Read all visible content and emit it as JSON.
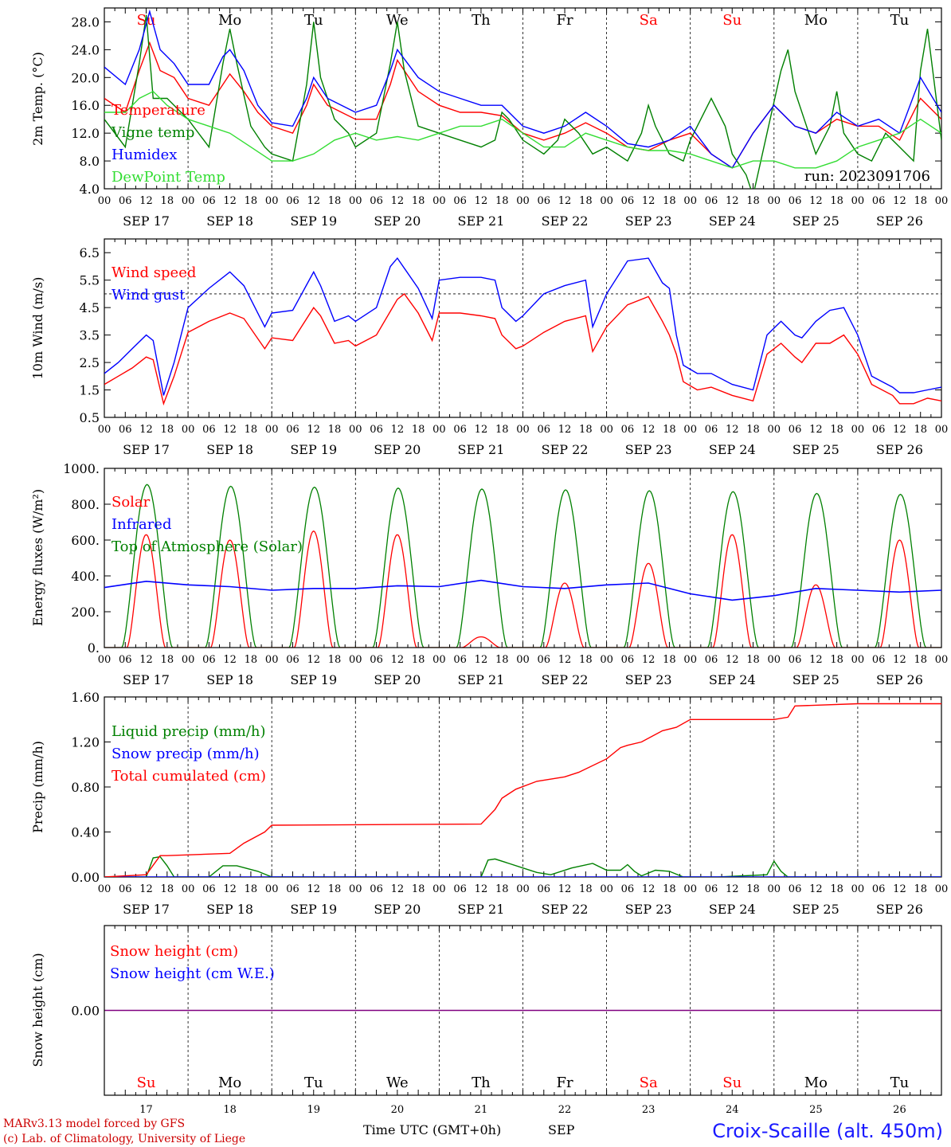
{
  "colors": {
    "red": "#ff0000",
    "green": "#008000",
    "blue": "#0000ff",
    "lightgreen": "#33dd33",
    "purple": "#800080"
  },
  "days": [
    {
      "label": "Su",
      "weekend": true,
      "date": "SEP 17",
      "num": "17"
    },
    {
      "label": "Mo",
      "weekend": false,
      "date": "SEP 18",
      "num": "18"
    },
    {
      "label": "Tu",
      "weekend": false,
      "date": "SEP 19",
      "num": "19"
    },
    {
      "label": "We",
      "weekend": false,
      "date": "SEP 20",
      "num": "20"
    },
    {
      "label": "Th",
      "weekend": false,
      "date": "SEP 21",
      "num": "21"
    },
    {
      "label": "Fr",
      "weekend": false,
      "date": "SEP 22",
      "num": "22"
    },
    {
      "label": "Sa",
      "weekend": true,
      "date": "SEP 23",
      "num": "23"
    },
    {
      "label": "Su",
      "weekend": true,
      "date": "SEP 24",
      "num": "24"
    },
    {
      "label": "Mo",
      "weekend": false,
      "date": "SEP 25",
      "num": "25"
    },
    {
      "label": "Tu",
      "weekend": false,
      "date": "SEP 26",
      "num": "26"
    }
  ],
  "hour_labels": [
    "00",
    "06",
    "12",
    "18"
  ],
  "run_label": "run: 2023091706",
  "footer": {
    "model": "MARv3.13 model forced by GFS",
    "copyright": "(c) Lab. of Climatology, University of Liege",
    "axis_title": "Time UTC (GMT+0h)",
    "month": "SEP",
    "station": "Croix-Scaille (alt. 450m)"
  },
  "chart_data": [
    {
      "type": "line",
      "ylabel": "2m Temp. (°C)",
      "ylim": [
        4,
        30
      ],
      "yticks": [
        "4.0",
        "8.0",
        "12.0",
        "16.0",
        "20.0",
        "24.0",
        "28.0"
      ],
      "x_unit": "hours since Sep 17 00 UTC",
      "series": [
        {
          "name": "Temperature",
          "color": "#ff0000",
          "x": [
            0,
            6,
            10,
            13,
            16,
            20,
            24,
            30,
            34,
            36,
            40,
            44,
            48,
            54,
            58,
            60,
            64,
            68,
            72,
            78,
            82,
            84,
            90,
            96,
            102,
            108,
            114,
            120,
            126,
            132,
            138,
            144,
            150,
            156,
            162,
            168,
            174,
            180,
            186,
            192,
            198,
            204,
            210,
            216,
            222,
            228,
            234,
            240
          ],
          "values": [
            17,
            15,
            21,
            25,
            21,
            20,
            17,
            16,
            19,
            20.5,
            18,
            15,
            13,
            12,
            16,
            19,
            16,
            15,
            14,
            14,
            19,
            22.5,
            18,
            16,
            15,
            15,
            14.5,
            12,
            11,
            12,
            13.5,
            12,
            10,
            9.5,
            11,
            12,
            9,
            7,
            12,
            16,
            13,
            12,
            14,
            13,
            13,
            11,
            17,
            14
          ]
        },
        {
          "name": "Vigne temp",
          "color": "#008000",
          "x": [
            0,
            6,
            10,
            12,
            14,
            18,
            22,
            24,
            30,
            34,
            36,
            38,
            42,
            46,
            48,
            54,
            58,
            60,
            62,
            66,
            70,
            72,
            78,
            82,
            84,
            86,
            90,
            96,
            102,
            108,
            112,
            114,
            116,
            120,
            126,
            130,
            132,
            136,
            140,
            144,
            150,
            154,
            156,
            158,
            162,
            166,
            168,
            174,
            178,
            180,
            184,
            186,
            190,
            194,
            196,
            198,
            204,
            208,
            210,
            212,
            216,
            220,
            224,
            228,
            232,
            234,
            236,
            240
          ],
          "values": [
            14,
            10,
            22,
            29,
            17,
            17,
            15,
            14,
            10,
            22,
            27,
            22,
            13,
            10,
            9,
            8,
            19,
            28,
            20,
            14,
            12,
            10,
            12,
            22,
            28,
            21,
            13,
            12,
            11,
            10,
            11,
            15,
            14,
            11,
            9,
            11,
            14,
            12,
            9,
            10,
            8,
            12,
            16,
            13,
            9,
            8,
            11,
            17,
            13,
            9,
            6,
            3,
            12,
            21,
            24,
            18,
            9,
            13,
            18,
            12,
            9,
            8,
            12,
            10,
            8,
            21,
            27,
            11
          ]
        },
        {
          "name": "Humidex",
          "color": "#0000ff",
          "x": [
            0,
            6,
            10,
            13,
            16,
            20,
            24,
            30,
            34,
            36,
            40,
            44,
            48,
            54,
            58,
            60,
            64,
            68,
            72,
            78,
            82,
            84,
            90,
            96,
            102,
            108,
            114,
            120,
            126,
            132,
            138,
            144,
            150,
            156,
            162,
            168,
            174,
            180,
            186,
            192,
            198,
            204,
            210,
            216,
            222,
            228,
            234,
            240
          ],
          "values": [
            21.5,
            19,
            24,
            29.5,
            24,
            22,
            19,
            19,
            23,
            24,
            21,
            16,
            13.5,
            13,
            17,
            20,
            17,
            16,
            15,
            16,
            21,
            24,
            20,
            18,
            17,
            16,
            16,
            13,
            12,
            13,
            15,
            13,
            10.5,
            10,
            11,
            13,
            9,
            7,
            12,
            16,
            13,
            12,
            15,
            13,
            14,
            12,
            20,
            15
          ]
        },
        {
          "name": "DewPoint Temp",
          "color": "#33dd33",
          "x": [
            0,
            6,
            10,
            14,
            18,
            24,
            30,
            36,
            42,
            48,
            54,
            60,
            66,
            72,
            78,
            84,
            90,
            96,
            102,
            108,
            114,
            120,
            126,
            132,
            138,
            144,
            150,
            156,
            162,
            168,
            174,
            180,
            186,
            192,
            198,
            204,
            210,
            216,
            222,
            228,
            234,
            240
          ],
          "values": [
            15,
            15,
            17,
            18,
            16,
            14,
            13,
            12,
            10,
            8,
            8,
            9,
            11,
            12,
            11,
            11.5,
            11,
            12,
            13,
            13,
            14,
            12,
            10,
            10,
            12,
            11,
            10,
            9.5,
            9.5,
            9,
            8,
            7,
            8,
            8,
            7,
            7,
            8,
            10,
            11,
            12,
            14,
            12
          ]
        }
      ]
    },
    {
      "type": "line",
      "ylabel": "10m Wind (m/s)",
      "ylim": [
        0.5,
        7.0
      ],
      "yticks": [
        "0.5",
        "1.5",
        "2.5",
        "3.5",
        "4.5",
        "5.5",
        "6.5"
      ],
      "reference_line": 5.0,
      "series": [
        {
          "name": "Wind speed",
          "color": "#ff0000",
          "x": [
            0,
            4,
            8,
            12,
            14,
            17,
            20,
            24,
            30,
            36,
            40,
            46,
            48,
            54,
            60,
            62,
            66,
            70,
            72,
            78,
            84,
            86,
            90,
            94,
            96,
            102,
            108,
            112,
            114,
            118,
            120,
            126,
            132,
            138,
            140,
            144,
            150,
            156,
            160,
            162,
            164,
            166,
            170,
            174,
            180,
            186,
            190,
            194,
            198,
            200,
            204,
            208,
            212,
            216,
            220,
            226,
            228,
            232,
            236,
            240
          ],
          "values": [
            1.7,
            2,
            2.3,
            2.7,
            2.6,
            1,
            2,
            3.6,
            4,
            4.3,
            4.1,
            3,
            3.4,
            3.3,
            4.5,
            4.2,
            3.2,
            3.3,
            3.1,
            3.5,
            4.8,
            5,
            4.3,
            3.3,
            4.3,
            4.3,
            4.2,
            4.1,
            3.5,
            3,
            3.1,
            3.6,
            4,
            4.2,
            2.9,
            3.8,
            4.6,
            4.9,
            4,
            3.5,
            2.8,
            1.8,
            1.5,
            1.6,
            1.3,
            1.1,
            2.8,
            3.2,
            2.7,
            2.5,
            3.2,
            3.2,
            3.5,
            2.8,
            1.7,
            1.3,
            1,
            1,
            1.2,
            1.1
          ]
        },
        {
          "name": "Wind gust",
          "color": "#0000ff",
          "x": [
            0,
            4,
            8,
            12,
            14,
            17,
            20,
            24,
            30,
            36,
            40,
            46,
            48,
            54,
            60,
            62,
            66,
            70,
            72,
            78,
            82,
            84,
            90,
            94,
            96,
            102,
            108,
            112,
            114,
            118,
            120,
            126,
            132,
            138,
            140,
            144,
            150,
            156,
            160,
            162,
            164,
            166,
            170,
            174,
            180,
            186,
            190,
            194,
            198,
            200,
            204,
            208,
            212,
            216,
            220,
            226,
            228,
            232,
            236,
            240
          ],
          "values": [
            2.1,
            2.5,
            3,
            3.5,
            3.3,
            1.3,
            2.5,
            4.5,
            5.2,
            5.8,
            5.3,
            3.8,
            4.3,
            4.4,
            5.8,
            5.3,
            4,
            4.2,
            4,
            4.5,
            6,
            6.3,
            5.2,
            4.1,
            5.5,
            5.6,
            5.6,
            5.5,
            4.5,
            4,
            4.2,
            5,
            5.3,
            5.5,
            3.8,
            5,
            6.2,
            6.3,
            5.4,
            5.2,
            3.5,
            2.4,
            2.1,
            2.1,
            1.7,
            1.5,
            3.5,
            4,
            3.5,
            3.4,
            4,
            4.4,
            4.5,
            3.5,
            2,
            1.6,
            1.4,
            1.4,
            1.5,
            1.6
          ]
        }
      ]
    },
    {
      "type": "line",
      "ylabel": "Energy fluxes (W/m²)",
      "ylim": [
        0,
        1000
      ],
      "yticks": [
        "0.",
        "200.",
        "400.",
        "600.",
        "800.",
        "1000."
      ],
      "series": [
        {
          "name": "Solar",
          "color": "#ff0000",
          "daily_peak": [
            630,
            600,
            650,
            630,
            60,
            360,
            470,
            630,
            350,
            600
          ]
        },
        {
          "name": "Infrared",
          "color": "#0000ff",
          "x": [
            0,
            12,
            24,
            36,
            48,
            60,
            72,
            84,
            96,
            108,
            120,
            132,
            144,
            156,
            168,
            180,
            192,
            204,
            216,
            228,
            240
          ],
          "values": [
            335,
            370,
            350,
            340,
            320,
            330,
            330,
            345,
            340,
            375,
            340,
            330,
            350,
            360,
            300,
            265,
            290,
            330,
            320,
            310,
            320
          ]
        },
        {
          "name": "Top of Atmosphere (Solar)",
          "color": "#008000",
          "daily_peak": [
            910,
            900,
            895,
            890,
            885,
            880,
            875,
            870,
            860,
            855
          ]
        }
      ]
    },
    {
      "type": "line",
      "ylabel": "Precip (mm/h)",
      "ylim": [
        0,
        1.6
      ],
      "yticks": [
        "0.00",
        "0.40",
        "0.80",
        "1.20",
        "1.60"
      ],
      "series": [
        {
          "name": "Liquid precip (mm/h)",
          "color": "#008000",
          "x": [
            0,
            12,
            14,
            16,
            18,
            20,
            30,
            34,
            38,
            44,
            48,
            108,
            110,
            112,
            116,
            120,
            124,
            128,
            134,
            140,
            144,
            148,
            150,
            152,
            154,
            158,
            162,
            166,
            176,
            190,
            192,
            194,
            196,
            200,
            240
          ],
          "values": [
            0,
            0,
            0.17,
            0.18,
            0.1,
            0,
            0,
            0.1,
            0.1,
            0.05,
            0,
            0,
            0.15,
            0.16,
            0.12,
            0.08,
            0.04,
            0.02,
            0.08,
            0.12,
            0.06,
            0.06,
            0.11,
            0.05,
            0.01,
            0.06,
            0.05,
            0,
            0,
            0.02,
            0.14,
            0.05,
            0,
            0,
            0
          ]
        },
        {
          "name": "Snow precip (mm/h)",
          "color": "#0000ff",
          "x": [
            0,
            240
          ],
          "values": [
            0,
            0
          ]
        },
        {
          "name": "Total cumulated (cm)",
          "color": "#ff0000",
          "x": [
            0,
            12,
            16,
            18,
            36,
            40,
            46,
            48,
            108,
            112,
            114,
            118,
            124,
            132,
            136,
            144,
            148,
            150,
            154,
            160,
            164,
            168,
            180,
            192,
            196,
            198,
            216,
            240
          ],
          "values": [
            0,
            0.02,
            0.19,
            0.19,
            0.21,
            0.3,
            0.4,
            0.46,
            0.47,
            0.6,
            0.7,
            0.78,
            0.85,
            0.89,
            0.93,
            1.05,
            1.15,
            1.17,
            1.2,
            1.3,
            1.33,
            1.4,
            1.4,
            1.4,
            1.42,
            1.52,
            1.54,
            1.54
          ]
        }
      ]
    },
    {
      "type": "line",
      "ylabel": "Snow height (cm)",
      "yticks": [
        "0.00"
      ],
      "series": [
        {
          "name": "Snow height (cm)",
          "color": "#ff0000",
          "x": [
            0,
            240
          ],
          "values": [
            0,
            0
          ]
        },
        {
          "name": "Snow height (cm W.E.)",
          "color": "#0000ff",
          "x": [
            0,
            240
          ],
          "values": [
            0,
            0
          ]
        }
      ]
    }
  ]
}
